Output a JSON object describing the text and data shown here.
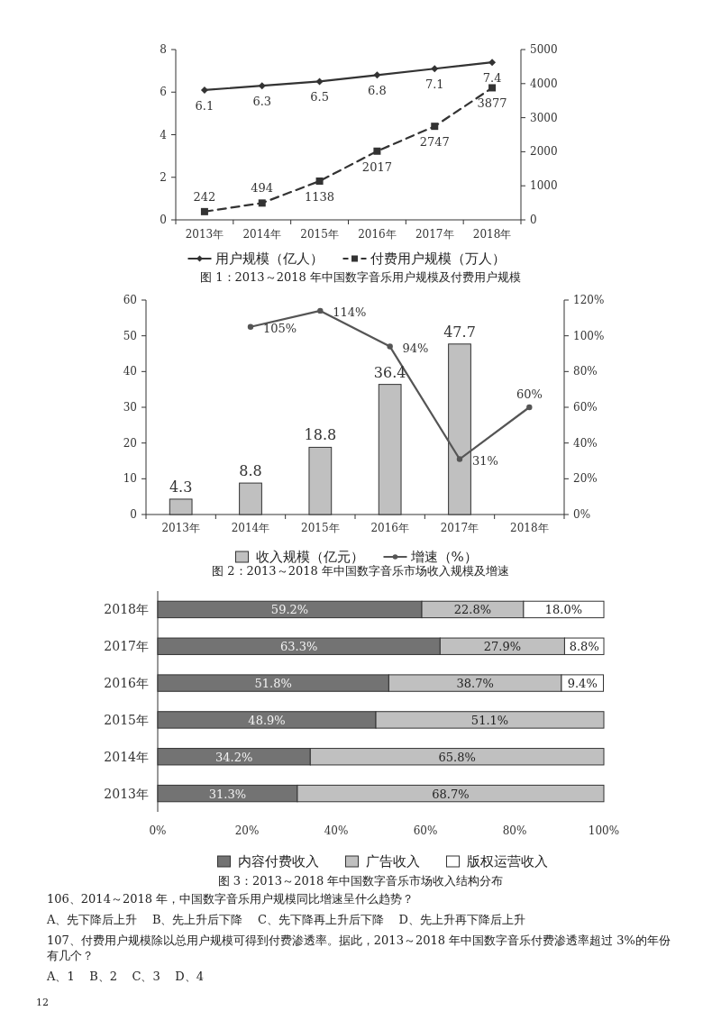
{
  "chart_data": [
    {
      "type": "line",
      "title": "图 1：2013～2018 年中国数字音乐用户规模及付费用户规模",
      "categories": [
        "2013年",
        "2014年",
        "2015年",
        "2016年",
        "2017年",
        "2018年"
      ],
      "series": [
        {
          "name": "用户规模（亿人）",
          "color": "#333333",
          "values": [
            6.1,
            6.3,
            6.5,
            6.8,
            7.1,
            7.4
          ],
          "value_labels": [
            "6.1",
            "6.3",
            "6.5",
            "6.8",
            "7.1",
            "7.4"
          ],
          "marker": "diamond",
          "line_style": "solid"
        },
        {
          "name": "付费用户规模（万人）",
          "color": "#333333",
          "values": [
            242,
            494,
            1138,
            2017,
            2747,
            3877
          ],
          "value_labels": [
            "242",
            "494",
            "1138",
            "2017",
            "2747",
            "3877"
          ],
          "axis": "y2",
          "marker": "square",
          "line_style": "dashed"
        }
      ],
      "ylim": [
        0,
        8
      ],
      "yticks": [
        0,
        2,
        4,
        6,
        8
      ],
      "y2lim": [
        0,
        5000
      ],
      "y2ticks": [
        0,
        1000,
        2000,
        3000,
        4000,
        5000
      ],
      "legend": "bottom",
      "grid": false
    },
    {
      "type": "bar",
      "title": "图 2：2013～2018 年中国数字音乐市场收入规模及增速",
      "categories": [
        "2013年",
        "2014年",
        "2015年",
        "2016年",
        "2017年",
        "2018年"
      ],
      "series": [
        {
          "name": "收入规模（亿元）",
          "color": "#c0c0c0",
          "values": [
            4.3,
            8.8,
            18.8,
            36.4,
            47.7,
            null
          ],
          "value_labels": [
            "4.3",
            "8.8",
            "18.8",
            "36.4",
            "47.7",
            null
          ]
        },
        {
          "name": "增速（%）",
          "type": "line",
          "color": "#555555",
          "axis": "y2",
          "marker": "circle",
          "line_style": "solid",
          "values": [
            null,
            105,
            114,
            94,
            31,
            60
          ],
          "value_labels": [
            null,
            "105%",
            "114%",
            "94%",
            "31%",
            "60%"
          ]
        }
      ],
      "ylim": [
        0,
        60
      ],
      "yticks": [
        0,
        10,
        20,
        30,
        40,
        50,
        60
      ],
      "y2lim": [
        0,
        120
      ],
      "y2ticks": [
        {
          "value": 0,
          "label": "0%"
        },
        {
          "value": 20,
          "label": "20%"
        },
        {
          "value": 40,
          "label": "40%"
        },
        {
          "value": 60,
          "label": "60%"
        },
        {
          "value": 80,
          "label": "80%"
        },
        {
          "value": 100,
          "label": "100%"
        },
        {
          "value": 120,
          "label": "120%"
        }
      ],
      "legend": "bottom",
      "grid": false
    },
    {
      "type": "bar",
      "orientation": "horizontal",
      "stacked": true,
      "title": "图 3：2013～2018 年中国数字音乐市场收入结构分布",
      "categories": [
        "2018年",
        "2017年",
        "2016年",
        "2015年",
        "2014年",
        "2013年"
      ],
      "series": [
        {
          "name": "内容付费收入",
          "color": "#737373",
          "values": [
            59.2,
            63.3,
            51.8,
            48.9,
            34.2,
            31.3
          ],
          "value_labels": [
            "59.2%",
            "63.3%",
            "51.8%",
            "48.9%",
            "34.2%",
            "31.3%"
          ]
        },
        {
          "name": "广告收入",
          "color": "#c0c0c0",
          "values": [
            22.8,
            27.9,
            38.7,
            51.1,
            65.8,
            68.7
          ],
          "value_labels": [
            "22.8%",
            "27.9%",
            "38.7%",
            "51.1%",
            "65.8%",
            "68.7%"
          ]
        },
        {
          "name": "版权运营收入",
          "color": "#ffffff",
          "values": [
            18.0,
            8.8,
            9.4,
            null,
            null,
            null
          ],
          "value_labels": [
            "18.0%",
            "8.8%",
            "9.4%",
            null,
            null,
            null
          ]
        }
      ],
      "xlim": [
        0,
        100
      ],
      "xticks": [
        {
          "value": 0,
          "label": "0%"
        },
        {
          "value": 20,
          "label": "20%"
        },
        {
          "value": 40,
          "label": "40%"
        },
        {
          "value": 60,
          "label": "60%"
        },
        {
          "value": 80,
          "label": "80%"
        },
        {
          "value": 100,
          "label": "100%"
        }
      ],
      "legend": "bottom",
      "grid": false,
      "annotations": [
        "106、2014～2018 年，中国数字音乐用户规模同比增速呈什么趋势？",
        "A、先下降后上升    B、先上升后下降    C、先下降再上升后下降    D、先上升再下降后上升",
        "107、付费用户规模除以总用户规模可得到付费渗透率。据此，2013～2018 年中国数字音乐付费渗透率超过 3%的年份有几个？",
        "A、1    B、2    C、3    D、4",
        "12"
      ]
    }
  ]
}
